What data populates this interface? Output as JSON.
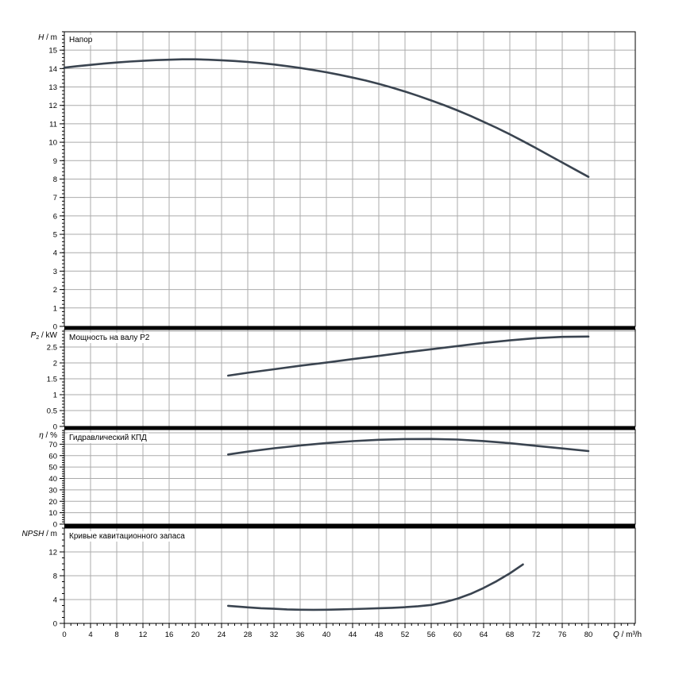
{
  "page": {
    "background": "#ffffff"
  },
  "colors": {
    "curve": "#3a4450",
    "grid": "#ababab",
    "axis": "#000000",
    "label_text": "#000000",
    "background": "#ffffff"
  },
  "x_axis": {
    "label_italic": "Q",
    "label_rest": " / m³/h",
    "min": 0,
    "max": 87,
    "major_step": 4,
    "minor_step": 1,
    "last_labeled": 80,
    "tick_labels": [
      "0",
      "4",
      "8",
      "12",
      "16",
      "20",
      "24",
      "28",
      "32",
      "36",
      "40",
      "44",
      "48",
      "52",
      "56",
      "60",
      "64",
      "68",
      "72",
      "76",
      "80"
    ]
  },
  "chart_data": [
    {
      "type": "line",
      "name": "head",
      "title": "Напор",
      "ylabel_italic": "H",
      "ylabel_sub": "",
      "ylabel_rest": " / m",
      "ylim": [
        0,
        16
      ],
      "grid": true,
      "grid_step": 1,
      "yminor_step": 0.2,
      "ytick_vals": [
        0,
        1,
        2,
        3,
        4,
        5,
        6,
        7,
        8,
        9,
        10,
        11,
        12,
        13,
        14,
        15
      ],
      "ytick_labels": [
        "0",
        "1",
        "2",
        "3",
        "4",
        "5",
        "6",
        "7",
        "8",
        "9",
        "10",
        "11",
        "12",
        "13",
        "14",
        "15"
      ],
      "series": [
        {
          "name": "H(Q)",
          "points": [
            [
              0,
              14.05
            ],
            [
              2,
              14.13
            ],
            [
              4,
              14.2
            ],
            [
              6,
              14.27
            ],
            [
              8,
              14.33
            ],
            [
              10,
              14.38
            ],
            [
              12,
              14.42
            ],
            [
              14,
              14.46
            ],
            [
              16,
              14.48
            ],
            [
              18,
              14.5
            ],
            [
              20,
              14.5
            ],
            [
              22,
              14.48
            ],
            [
              24,
              14.45
            ],
            [
              26,
              14.41
            ],
            [
              28,
              14.36
            ],
            [
              30,
              14.3
            ],
            [
              32,
              14.22
            ],
            [
              34,
              14.13
            ],
            [
              36,
              14.03
            ],
            [
              38,
              13.92
            ],
            [
              40,
              13.8
            ],
            [
              42,
              13.66
            ],
            [
              44,
              13.51
            ],
            [
              46,
              13.35
            ],
            [
              48,
              13.17
            ],
            [
              50,
              12.97
            ],
            [
              52,
              12.75
            ],
            [
              54,
              12.52
            ],
            [
              56,
              12.27
            ],
            [
              58,
              12.01
            ],
            [
              60,
              11.73
            ],
            [
              62,
              11.43
            ],
            [
              64,
              11.11
            ],
            [
              66,
              10.78
            ],
            [
              68,
              10.43
            ],
            [
              70,
              10.06
            ],
            [
              72,
              9.68
            ],
            [
              74,
              9.29
            ],
            [
              76,
              8.9
            ],
            [
              78,
              8.51
            ],
            [
              80,
              8.12
            ]
          ]
        }
      ]
    },
    {
      "type": "line",
      "name": "shaft-power",
      "title": "Мощность на валу P2",
      "ylabel_italic": "P",
      "ylabel_sub": "2",
      "ylabel_rest": " / kW",
      "ylim": [
        0,
        3
      ],
      "grid": true,
      "grid_step": 0.5,
      "yminor_step": 0.1,
      "ytick_vals": [
        0,
        0.5,
        1,
        1.5,
        2,
        2.5
      ],
      "ytick_labels": [
        "0",
        "0.5",
        "1",
        "1.5",
        "2",
        "2.5"
      ],
      "series": [
        {
          "name": "P2(Q)",
          "points": [
            [
              25,
              1.6
            ],
            [
              28,
              1.69
            ],
            [
              32,
              1.8
            ],
            [
              36,
              1.91
            ],
            [
              40,
              2.01
            ],
            [
              44,
              2.12
            ],
            [
              48,
              2.22
            ],
            [
              52,
              2.33
            ],
            [
              56,
              2.43
            ],
            [
              60,
              2.53
            ],
            [
              64,
              2.63
            ],
            [
              68,
              2.71
            ],
            [
              72,
              2.78
            ],
            [
              76,
              2.82
            ],
            [
              80,
              2.83
            ]
          ]
        }
      ]
    },
    {
      "type": "line",
      "name": "efficiency",
      "title": "Гидравлический КПД",
      "ylabel_italic": "η",
      "ylabel_sub": "",
      "ylabel_rest": " / %",
      "ylim": [
        0,
        80
      ],
      "grid": true,
      "grid_step": 10,
      "yminor_step": 2,
      "ytick_vals": [
        0,
        10,
        20,
        30,
        40,
        50,
        60,
        70
      ],
      "ytick_labels": [
        "0",
        "10",
        "20",
        "30",
        "40",
        "50",
        "60",
        "70"
      ],
      "series": [
        {
          "name": "eta(Q)",
          "points": [
            [
              25,
              61
            ],
            [
              28,
              63.5
            ],
            [
              32,
              66.4
            ],
            [
              36,
              68.9
            ],
            [
              40,
              71
            ],
            [
              44,
              72.7
            ],
            [
              48,
              73.9
            ],
            [
              52,
              74.5
            ],
            [
              56,
              74.6
            ],
            [
              60,
              74.1
            ],
            [
              64,
              72.8
            ],
            [
              68,
              70.9
            ],
            [
              72,
              68.6
            ],
            [
              76,
              66.3
            ],
            [
              80,
              64
            ]
          ]
        }
      ]
    },
    {
      "type": "line",
      "name": "npsh",
      "title": "Кривые кавитационного запаса",
      "ylabel_italic": "NPSH",
      "ylabel_sub": "",
      "ylabel_rest": " / m",
      "ylim": [
        0,
        16
      ],
      "grid": true,
      "grid_step": 4,
      "yminor_step": 1,
      "ytick_vals": [
        0,
        4,
        8,
        12
      ],
      "ytick_labels": [
        "0",
        "4",
        "8",
        "12"
      ],
      "series": [
        {
          "name": "NPSH(Q)",
          "points": [
            [
              25,
              2.95
            ],
            [
              28,
              2.7
            ],
            [
              30,
              2.55
            ],
            [
              32,
              2.45
            ],
            [
              34,
              2.35
            ],
            [
              36,
              2.3
            ],
            [
              38,
              2.28
            ],
            [
              40,
              2.3
            ],
            [
              42,
              2.35
            ],
            [
              44,
              2.4
            ],
            [
              46,
              2.47
            ],
            [
              48,
              2.55
            ],
            [
              50,
              2.62
            ],
            [
              52,
              2.72
            ],
            [
              54,
              2.88
            ],
            [
              56,
              3.1
            ],
            [
              58,
              3.55
            ],
            [
              60,
              4.15
            ],
            [
              62,
              4.95
            ],
            [
              64,
              5.95
            ],
            [
              66,
              7.1
            ],
            [
              68,
              8.4
            ],
            [
              70,
              9.9
            ]
          ]
        }
      ]
    }
  ]
}
